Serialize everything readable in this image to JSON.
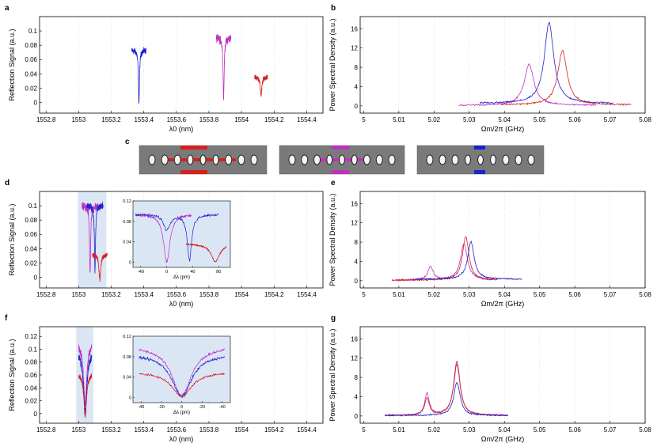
{
  "figure": {
    "panel_letters": [
      "a",
      "b",
      "c",
      "d",
      "e",
      "f",
      "g"
    ],
    "axes": {
      "lambda_label": "λ0 (nm)",
      "omega_label": "Ωm/2π (GHz)",
      "reflection_label": "Reflection Signal (a.u.)",
      "psd_label": "Power Spectral Density (a.u.)",
      "inset_x_label": "Δλ (pm)"
    },
    "ticks": {
      "lambda": [
        "1552.8",
        "1553",
        "1553.2",
        "1553.4",
        "1553.6",
        "1553.8",
        "1554",
        "1554.2",
        "1554.4"
      ],
      "omega": [
        "5",
        "5.01",
        "5.02",
        "5.03",
        "5.04",
        "5.05",
        "5.06",
        "5.07",
        "5.08"
      ],
      "psd": [
        "0",
        "4",
        "8",
        "12",
        "16"
      ],
      "refl_a": [
        "0",
        "0.02",
        "0.04",
        "0.06",
        "0.08",
        "0.1"
      ],
      "refl_d": [
        "0",
        "0.02",
        "0.04",
        "0.06",
        "0.08",
        "0.1"
      ],
      "refl_f": [
        "0",
        "0.02",
        "0.04",
        "0.06",
        "0.08",
        "0.1",
        "0.12"
      ],
      "inset_y": [
        "0",
        "0.04",
        "0.08",
        "0.12"
      ],
      "inset_d_x": [
        "-40",
        "0",
        "40",
        "80"
      ],
      "inset_f_x": [
        "-40",
        "-20",
        "0",
        "-20",
        "-40"
      ]
    },
    "colors": {
      "red": "#d42020",
      "magenta": "#c030c0",
      "blue": "#2020cc",
      "shade": "#dbe6f5",
      "box": "#4d4d4d"
    }
  },
  "chart_data": [
    {
      "panel": "a",
      "type": "line",
      "xlabel": "λ0 (nm)",
      "ylabel": "Reflection Signal (a.u.)",
      "xlim": [
        1552.76,
        1554.5
      ],
      "ylim": [
        -0.015,
        0.12
      ],
      "series": [
        {
          "name": "blue",
          "center": 1553.37,
          "halfwidth": 0.045,
          "baseline": 0.073,
          "noise": 0.006,
          "depth": 0.073,
          "width": 0.004
        },
        {
          "name": "magenta",
          "center": 1553.89,
          "halfwidth": 0.045,
          "baseline": 0.09,
          "noise": 0.008,
          "depth": 0.085,
          "width": 0.004
        },
        {
          "name": "red",
          "center": 1554.12,
          "halfwidth": 0.04,
          "baseline": 0.036,
          "noise": 0.005,
          "depth": 0.026,
          "width": 0.006
        }
      ]
    },
    {
      "panel": "b",
      "type": "line",
      "xlabel": "Ωm/2π (GHz)",
      "ylabel": "Power Spectral Density (a.u.)",
      "xlim": [
        4.999,
        5.08
      ],
      "ylim": [
        -1.5,
        18.5
      ],
      "series": [
        {
          "name": "magenta",
          "x_range": [
            5.027,
            5.066
          ],
          "peak_x": 5.047,
          "peak_y": 8.5,
          "gamma": 0.0033,
          "baseline": 0.1
        },
        {
          "name": "blue",
          "x_range": [
            5.033,
            5.071
          ],
          "peak_x": 5.0527,
          "peak_y": 16.8,
          "gamma": 0.0032,
          "baseline": 0.5
        },
        {
          "name": "red",
          "x_range": [
            5.039,
            5.076
          ],
          "peak_x": 5.0565,
          "peak_y": 11.2,
          "gamma": 0.0032,
          "baseline": 0.2
        }
      ]
    },
    {
      "panel": "d",
      "type": "line",
      "xlabel": "λ0 (nm)",
      "ylabel": "Reflection Signal (a.u.)",
      "xlim": [
        1552.76,
        1554.5
      ],
      "ylim": [
        -0.015,
        0.12
      ],
      "series": [
        {
          "name": "magenta",
          "center": 1553.07,
          "halfwidth": 0.05,
          "baseline": 0.1,
          "noise": 0.008,
          "depth": 0.095,
          "width": 0.004
        },
        {
          "name": "blue",
          "center": 1553.1,
          "halfwidth": 0.05,
          "baseline": 0.1,
          "noise": 0.008,
          "depth": 0.09,
          "width": 0.004
        },
        {
          "name": "red",
          "center": 1553.13,
          "halfwidth": 0.045,
          "baseline": 0.032,
          "noise": 0.005,
          "depth": 0.035,
          "width": 0.007
        }
      ],
      "inset": {
        "xlim": [
          -52,
          98
        ],
        "ylim": [
          -0.01,
          0.12
        ],
        "series": [
          {
            "name": "magenta",
            "x_range": [
              -48,
              38
            ],
            "baseline": 0.094,
            "noise": 0.004,
            "dips": [
              [
                0,
                0.092,
                6
              ]
            ]
          },
          {
            "name": "blue",
            "x_range": [
              -48,
              80
            ],
            "baseline": 0.094,
            "noise": 0.004,
            "dips": [
              [
                0,
                0.03,
                6
              ],
              [
                35,
                0.09,
                4
              ]
            ]
          },
          {
            "name": "red",
            "x_range": [
              30,
              92
            ],
            "baseline": 0.036,
            "noise": 0.003,
            "dips": [
              [
                75,
                0.035,
                8
              ]
            ]
          }
        ]
      }
    },
    {
      "panel": "e",
      "type": "line",
      "xlabel": "Ωm/2π (GHz)",
      "ylabel": "Power Spectral Density (a.u.)",
      "xlim": [
        4.999,
        5.08
      ],
      "ylim": [
        -1.5,
        18.5
      ],
      "series": [
        {
          "name": "magenta",
          "x_range": [
            5.009,
            5.037
          ],
          "peaks": [
            [
              5.019,
              2.8,
              0.0018
            ],
            [
              5.0285,
              7.5,
              0.0024
            ]
          ],
          "baseline": 0.1
        },
        {
          "name": "red",
          "x_range": [
            5.008,
            5.038
          ],
          "peaks": [
            [
              5.029,
              9.0,
              0.0022
            ]
          ],
          "baseline": 0.1
        },
        {
          "name": "blue",
          "x_range": [
            5.014,
            5.045
          ],
          "peaks": [
            [
              5.0305,
              7.8,
              0.0022
            ]
          ],
          "baseline": 0.3
        }
      ]
    },
    {
      "panel": "f",
      "type": "line",
      "xlabel": "λ0 (nm)",
      "ylabel": "Reflection Signal (a.u.)",
      "xlim": [
        1552.76,
        1554.5
      ],
      "ylim": [
        -0.015,
        0.135
      ],
      "series": [
        {
          "name": "magenta",
          "center": 1553.04,
          "halfwidth": 0.04,
          "baseline": 0.11,
          "noise": 0.009,
          "depth": 0.095,
          "width": 0.012
        },
        {
          "name": "blue",
          "center": 1553.04,
          "halfwidth": 0.04,
          "baseline": 0.095,
          "noise": 0.009,
          "depth": 0.095,
          "width": 0.012
        },
        {
          "name": "red",
          "center": 1553.04,
          "halfwidth": 0.04,
          "baseline": 0.062,
          "noise": 0.006,
          "depth": 0.065,
          "width": 0.01
        }
      ],
      "inset": {
        "xlim": [
          -48,
          48
        ],
        "ylim": [
          -0.01,
          0.12
        ],
        "series": [
          {
            "name": "magenta",
            "x_range": [
              -42,
              42
            ],
            "baseline": 0.1,
            "noise": 0.004,
            "dips": [
              [
                0,
                0.095,
                12
              ]
            ]
          },
          {
            "name": "blue",
            "x_range": [
              -42,
              42
            ],
            "baseline": 0.085,
            "noise": 0.004,
            "dips": [
              [
                0,
                0.083,
                12
              ]
            ]
          },
          {
            "name": "red",
            "x_range": [
              -42,
              42
            ],
            "baseline": 0.05,
            "noise": 0.003,
            "dips": [
              [
                0,
                0.048,
                12
              ]
            ]
          }
        ]
      }
    },
    {
      "panel": "g",
      "type": "line",
      "xlabel": "Ωm/2π (GHz)",
      "ylabel": "Power Spectral Density (a.u.)",
      "xlim": [
        4.999,
        5.08
      ],
      "ylim": [
        -1.5,
        18.5
      ],
      "series": [
        {
          "name": "magenta",
          "x_range": [
            5.006,
            5.041
          ],
          "peaks": [
            [
              5.018,
              4.5,
              0.0016
            ],
            [
              5.0265,
              10.5,
              0.0022
            ]
          ],
          "baseline": 0.1
        },
        {
          "name": "red",
          "x_range": [
            5.006,
            5.041
          ],
          "peaks": [
            [
              5.018,
              3.5,
              0.0016
            ],
            [
              5.0265,
              11.2,
              0.0022
            ]
          ],
          "baseline": 0.1
        },
        {
          "name": "blue",
          "x_range": [
            5.006,
            5.041
          ],
          "peaks": [
            [
              5.0265,
              6.8,
              0.0022
            ]
          ],
          "baseline": 0.1
        }
      ]
    }
  ]
}
